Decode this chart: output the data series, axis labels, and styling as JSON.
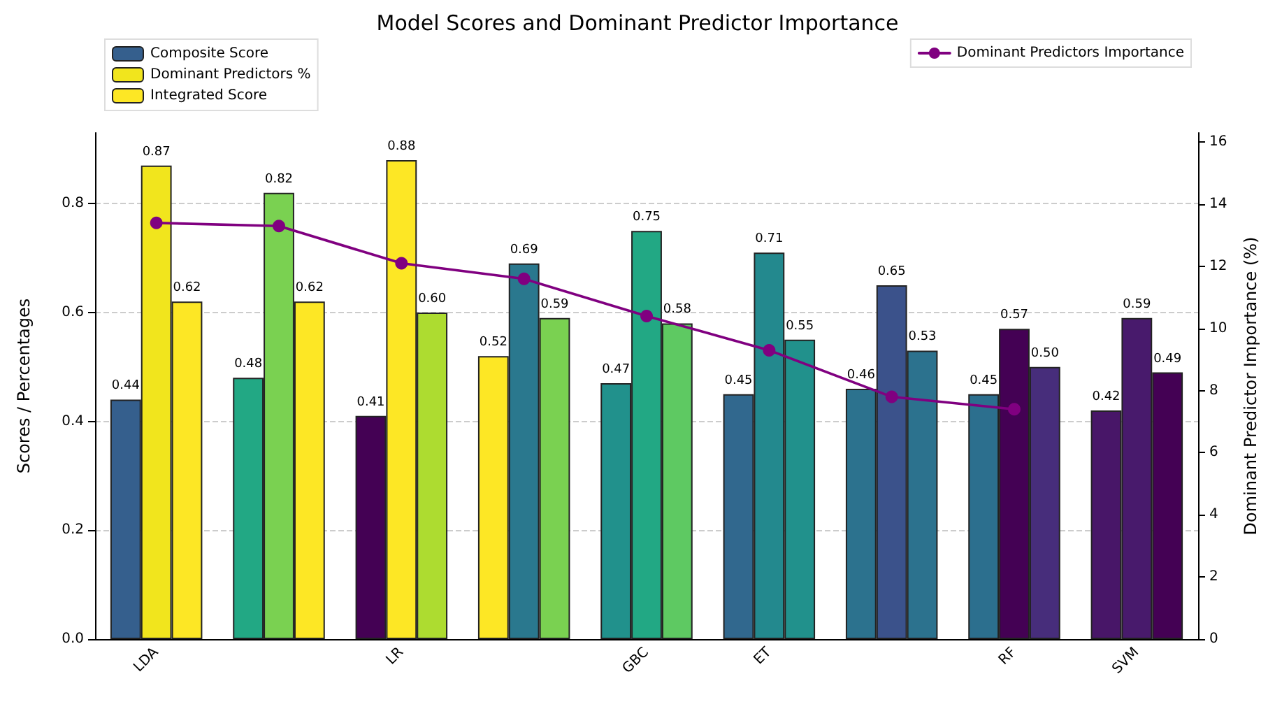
{
  "chart_data": {
    "type": "bar",
    "title": "Model Scores and Dominant Predictor Importance",
    "xlabel": null,
    "ylabel": "Scores / Percentages",
    "y2label": "Dominant Predictor Importance (%)",
    "categories": [
      "LDA",
      null,
      "LR",
      null,
      "GBC",
      "ET",
      null,
      "RF",
      "SVM"
    ],
    "series": [
      {
        "name": "Composite Score",
        "color": "#355f8d",
        "colors": [
          "#355f8d",
          "#22a884",
          "#440154",
          "#fde725",
          "#21918c",
          "#31688e",
          "#2c728e",
          "#2c6f8e",
          "#481668"
        ],
        "values": [
          0.44,
          0.48,
          0.41,
          0.52,
          0.47,
          0.45,
          0.46,
          0.45,
          0.42
        ],
        "value_labels": [
          "0.44",
          "0.48",
          "0.41",
          "0.52",
          "0.47",
          "0.45",
          "0.46",
          "0.45",
          "0.42"
        ]
      },
      {
        "name": "Dominant Predictors %",
        "color": "#f1e51d",
        "colors": [
          "#f1e51d",
          "#7ad151",
          "#fde725",
          "#2a788e",
          "#22a884",
          "#23898e",
          "#3b528b",
          "#440154",
          "#481a6c"
        ],
        "values": [
          0.87,
          0.82,
          0.88,
          0.69,
          0.75,
          0.71,
          0.65,
          0.57,
          0.59
        ],
        "value_labels": [
          "0.87",
          "0.82",
          "0.88",
          "0.69",
          "0.75",
          "0.71",
          "0.65",
          "0.57",
          "0.59"
        ]
      },
      {
        "name": "Integrated Score",
        "color": "#fde725",
        "colors": [
          "#fde725",
          "#fde725",
          "#addc30",
          "#7ad151",
          "#5ec962",
          "#21918c",
          "#2c728e",
          "#472d7b",
          "#440154"
        ],
        "values": [
          0.62,
          0.62,
          0.6,
          0.59,
          0.58,
          0.55,
          0.53,
          0.5,
          0.49
        ],
        "value_labels": [
          "0.62",
          "0.62",
          "0.60",
          "0.59",
          "0.58",
          "0.55",
          "0.53",
          "0.50",
          "0.49"
        ]
      },
      {
        "name": "Dominant Predictors Importance",
        "type": "line",
        "axis": "y2",
        "color": "#800080",
        "marker": "circle",
        "values": [
          13.4,
          13.3,
          12.1,
          11.6,
          10.4,
          9.3,
          7.8,
          7.4,
          null
        ]
      }
    ],
    "ylim": [
      0,
      0.93
    ],
    "yticks": [
      {
        "value": 0,
        "label": "0.0"
      },
      {
        "value": 0.2,
        "label": "0.2"
      },
      {
        "value": 0.4,
        "label": "0.4"
      },
      {
        "value": 0.6,
        "label": "0.6"
      },
      {
        "value": 0.8,
        "label": "0.8"
      }
    ],
    "y2lim": [
      0,
      16.3
    ],
    "y2ticks": [
      0,
      2,
      4,
      6,
      8,
      10,
      12,
      14,
      16
    ],
    "grid": "y",
    "legend": "top left"
  }
}
